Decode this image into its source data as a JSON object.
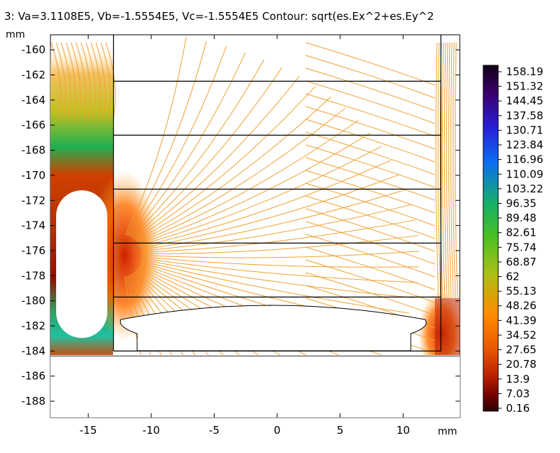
{
  "title": "3: Va=3.1108E5, Vb=-1.5554E5, Vc=-1.5554E5  Contour: sqrt(es.Ex^2+es.Ey^2",
  "chart_data": {
    "type": "contour",
    "xunit": "mm",
    "yunit": "mm",
    "xlim": [
      -18,
      14.5
    ],
    "ylim": [
      -189.3,
      -158.8
    ],
    "xticks": [
      -15,
      -10,
      -5,
      0,
      5,
      10
    ],
    "xtick_labels": [
      "-15",
      "-10",
      "-5",
      "0",
      "5",
      "10"
    ],
    "yticks": [
      -160,
      -162,
      -164,
      -166,
      -168,
      -170,
      -172,
      -174,
      -176,
      -178,
      -180,
      -182,
      -184,
      -186,
      -188
    ],
    "ytick_labels": [
      "-160",
      "-162",
      "-164",
      "-166",
      "-168",
      "-170",
      "-172",
      "-174",
      "-176",
      "-178",
      "-180",
      "-182",
      "-184",
      "-186",
      "-188"
    ],
    "colorbar": {
      "min": 0.16,
      "max": 158.19,
      "tick_labels": [
        "158.19",
        "151.32",
        "144.45",
        "137.58",
        "130.71",
        "123.84",
        "116.96",
        "110.09",
        "103.22",
        "96.35",
        "89.48",
        "82.61",
        "75.74",
        "68.87",
        "62",
        "55.13",
        "48.26",
        "41.39",
        "34.52",
        "27.65",
        "20.78",
        "13.9",
        "7.03",
        "0.16"
      ],
      "colormap": [
        "#100018",
        "#3a006a",
        "#2a1fd8",
        "#0c6cf0",
        "#16b068",
        "#4cc020",
        "#a8c018",
        "#ff8c00",
        "#e85800",
        "#b82000",
        "#6a0000",
        "#2a0000"
      ]
    },
    "contour_color": "#f0a030",
    "geometry_lines_y": [
      -162.5,
      -166.8,
      -171.1,
      -175.4,
      -179.7,
      -184.0
    ],
    "geometry_x": [
      -13,
      13
    ]
  }
}
